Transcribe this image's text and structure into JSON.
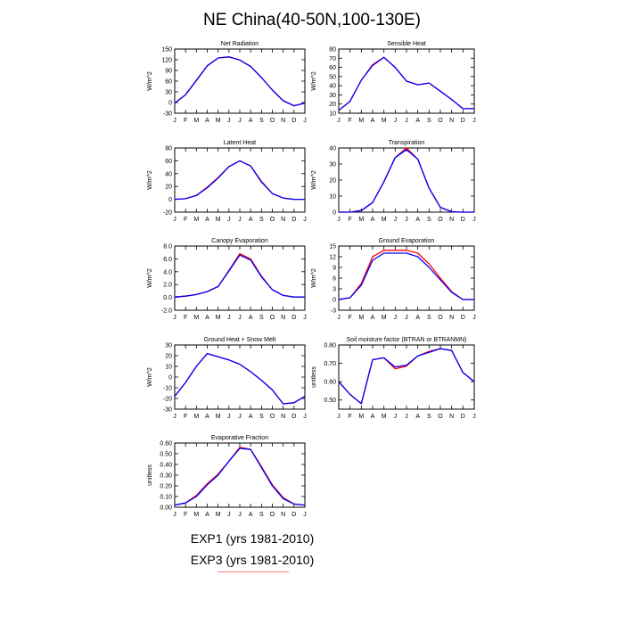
{
  "title": "NE China(40-50N,100-130E)",
  "colors": {
    "exp1": "#0000ff",
    "exp3": "#ff0000"
  },
  "legend": {
    "exp1": "EXP1 (yrs 1981-2010)",
    "exp3": "EXP3 (yrs 1981-2010)"
  },
  "chart_data": [
    {
      "type": "line",
      "title": "Net Radiation",
      "ylabel": "W/m^2",
      "categories": [
        "J",
        "F",
        "M",
        "A",
        "M",
        "J",
        "J",
        "A",
        "S",
        "O",
        "N",
        "D",
        "J"
      ],
      "ylim": [
        -30,
        150
      ],
      "yticks": [
        -30,
        0,
        30,
        60,
        90,
        120,
        150
      ],
      "yticklabels": [
        "-30",
        "0",
        "30",
        "60",
        "90",
        "120",
        "150"
      ],
      "series": [
        {
          "name": "EXP1 (yrs 1981-2010)",
          "color": "#0000ff",
          "values": [
            -2,
            22,
            62,
            103,
            125,
            128,
            119,
            101,
            70,
            35,
            5,
            -9,
            -2
          ]
        },
        {
          "name": "EXP3 (yrs 1981-2010)",
          "color": "#ff0000",
          "values": [
            -2,
            22,
            62,
            103,
            125,
            128,
            119,
            101,
            70,
            35,
            5,
            -9,
            -2
          ]
        }
      ]
    },
    {
      "type": "line",
      "title": "Sensible Heat",
      "ylabel": "W/m^2",
      "categories": [
        "J",
        "F",
        "M",
        "A",
        "M",
        "J",
        "J",
        "A",
        "S",
        "O",
        "N",
        "D",
        "J"
      ],
      "ylim": [
        10,
        80
      ],
      "yticks": [
        10,
        20,
        30,
        40,
        50,
        60,
        70,
        80
      ],
      "yticklabels": [
        "10",
        "20",
        "30",
        "40",
        "50",
        "60",
        "70",
        "80"
      ],
      "series": [
        {
          "name": "EXP1 (yrs 1981-2010)",
          "color": "#0000ff",
          "values": [
            13,
            23,
            46,
            62,
            71,
            60,
            45,
            41,
            43,
            34,
            25,
            15,
            15
          ]
        },
        {
          "name": "EXP3 (yrs 1981-2010)",
          "color": "#ff0000",
          "values": [
            13,
            23,
            46,
            63,
            71,
            60,
            45,
            41,
            43,
            34,
            25,
            15,
            15
          ]
        }
      ]
    },
    {
      "type": "line",
      "title": "Latent Heat",
      "ylabel": "W/m^2",
      "categories": [
        "J",
        "F",
        "M",
        "A",
        "M",
        "J",
        "J",
        "A",
        "S",
        "O",
        "N",
        "D",
        "J"
      ],
      "ylim": [
        -20,
        80
      ],
      "yticks": [
        -20,
        0,
        20,
        40,
        60,
        80
      ],
      "yticklabels": [
        "-20",
        "0",
        "20",
        "40",
        "60",
        "80"
      ],
      "series": [
        {
          "name": "EXP1 (yrs 1981-2010)",
          "color": "#0000ff",
          "values": [
            0,
            1,
            6,
            18,
            33,
            51,
            60,
            52,
            27,
            9,
            2,
            0,
            0
          ]
        },
        {
          "name": "EXP3 (yrs 1981-2010)",
          "color": "#ff0000",
          "values": [
            0,
            1,
            6,
            19,
            34,
            51,
            60,
            52,
            28,
            9,
            2,
            0,
            0
          ]
        }
      ]
    },
    {
      "type": "line",
      "title": "Transpiration",
      "ylabel": "W/m^2",
      "categories": [
        "J",
        "F",
        "M",
        "A",
        "M",
        "J",
        "J",
        "A",
        "S",
        "O",
        "N",
        "D",
        "J"
      ],
      "ylim": [
        0,
        40
      ],
      "yticks": [
        0,
        10,
        20,
        30,
        40
      ],
      "yticklabels": [
        "0",
        "10",
        "20",
        "30",
        "40"
      ],
      "series": [
        {
          "name": "EXP1 (yrs 1981-2010)",
          "color": "#0000ff",
          "values": [
            0,
            0,
            1,
            6,
            19,
            34,
            39,
            33,
            15,
            3,
            0.3,
            0,
            0
          ]
        },
        {
          "name": "EXP3 (yrs 1981-2010)",
          "color": "#ff0000",
          "values": [
            0,
            0,
            1,
            6,
            19,
            34,
            40,
            33,
            15,
            3,
            0.3,
            0,
            0
          ]
        }
      ]
    },
    {
      "type": "line",
      "title": "Canopy Evaporation",
      "ylabel": "W/m^2",
      "categories": [
        "J",
        "F",
        "M",
        "A",
        "M",
        "J",
        "J",
        "A",
        "S",
        "O",
        "N",
        "D",
        "J"
      ],
      "ylim": [
        -2,
        8
      ],
      "yticks": [
        -2,
        0,
        2,
        4,
        6,
        8
      ],
      "yticklabels": [
        "-2.0",
        "0.0",
        "2.0",
        "4.0",
        "6.0",
        "8.0"
      ],
      "series": [
        {
          "name": "EXP1 (yrs 1981-2010)",
          "color": "#0000ff",
          "values": [
            0.05,
            0.2,
            0.45,
            0.9,
            1.7,
            4.1,
            6.6,
            5.8,
            3.2,
            1.2,
            0.3,
            0.05,
            0.05
          ]
        },
        {
          "name": "EXP3 (yrs 1981-2010)",
          "color": "#ff0000",
          "values": [
            0.05,
            0.2,
            0.45,
            0.9,
            1.7,
            4.2,
            6.8,
            6.0,
            3.3,
            1.2,
            0.3,
            0.05,
            0.05
          ]
        }
      ]
    },
    {
      "type": "line",
      "title": "Ground Evaporation",
      "ylabel": "W/m^2",
      "categories": [
        "J",
        "F",
        "M",
        "A",
        "M",
        "J",
        "J",
        "A",
        "S",
        "O",
        "N",
        "D",
        "J"
      ],
      "ylim": [
        -3,
        15
      ],
      "yticks": [
        -3,
        0,
        3,
        6,
        9,
        12,
        15
      ],
      "yticklabels": [
        "-3",
        "0",
        "3",
        "6",
        "9",
        "12",
        "15"
      ],
      "series": [
        {
          "name": "EXP1 (yrs 1981-2010)",
          "color": "#0000ff",
          "values": [
            0,
            0.5,
            4,
            11,
            13,
            13,
            13,
            12,
            9,
            5.5,
            2,
            0,
            0
          ]
        },
        {
          "name": "EXP3 (yrs 1981-2010)",
          "color": "#ff0000",
          "values": [
            0,
            0.5,
            4.5,
            12,
            13.8,
            13.8,
            13.8,
            13,
            10,
            6,
            2.2,
            0,
            0
          ]
        }
      ]
    },
    {
      "type": "line",
      "title": "Ground Heat + Snow Melt",
      "ylabel": "W/m^2",
      "categories": [
        "J",
        "F",
        "M",
        "A",
        "M",
        "J",
        "J",
        "A",
        "S",
        "O",
        "N",
        "D",
        "J"
      ],
      "ylim": [
        -30,
        30
      ],
      "yticks": [
        -30,
        -20,
        -10,
        0,
        10,
        20,
        30
      ],
      "yticklabels": [
        "-30",
        "-20",
        "-10",
        "0",
        "10",
        "20",
        "30"
      ],
      "series": [
        {
          "name": "EXP1 (yrs 1981-2010)",
          "color": "#0000ff",
          "values": [
            -18,
            -5,
            10,
            22,
            19,
            16,
            12,
            5,
            -3,
            -12,
            -25,
            -24,
            -18
          ]
        },
        {
          "name": "EXP3 (yrs 1981-2010)",
          "color": "#ff0000",
          "values": [
            -18,
            -5,
            10,
            22,
            19,
            16,
            12,
            5,
            -3,
            -12,
            -25,
            -24,
            -18
          ]
        }
      ]
    },
    {
      "type": "line",
      "title": "Soil moisture factor (BTRAN or BTRANMN)",
      "ylabel": "unitless",
      "categories": [
        "J",
        "F",
        "M",
        "A",
        "M",
        "J",
        "J",
        "A",
        "S",
        "O",
        "N",
        "D",
        "J"
      ],
      "ylim": [
        0.45,
        0.8
      ],
      "yticks": [
        0.5,
        0.6,
        0.7,
        0.8
      ],
      "yticklabels": [
        "0.50",
        "0.60",
        "0.70",
        "0.80"
      ],
      "series": [
        {
          "name": "EXP1 (yrs 1981-2010)",
          "color": "#0000ff",
          "values": [
            0.6,
            0.53,
            0.48,
            0.72,
            0.73,
            0.68,
            0.69,
            0.74,
            0.76,
            0.78,
            0.77,
            0.65,
            0.6
          ]
        },
        {
          "name": "EXP3 (yrs 1981-2010)",
          "color": "#ff0000",
          "values": [
            0.6,
            0.53,
            0.48,
            0.72,
            0.73,
            0.67,
            0.685,
            0.74,
            0.765,
            0.78,
            0.77,
            0.65,
            0.6
          ]
        }
      ]
    },
    {
      "type": "line",
      "title": "Evaporative Fraction",
      "ylabel": "unitless",
      "categories": [
        "J",
        "F",
        "M",
        "A",
        "M",
        "J",
        "J",
        "A",
        "S",
        "O",
        "N",
        "D",
        "J"
      ],
      "ylim": [
        0,
        0.6
      ],
      "yticks": [
        0,
        0.1,
        0.2,
        0.3,
        0.4,
        0.5,
        0.6
      ],
      "yticklabels": [
        "0.00",
        "0.10",
        "0.20",
        "0.30",
        "0.40",
        "0.50",
        "0.60"
      ],
      "series": [
        {
          "name": "EXP1 (yrs 1981-2010)",
          "color": "#0000ff",
          "values": [
            0.02,
            0.04,
            0.1,
            0.21,
            0.3,
            0.43,
            0.55,
            0.54,
            0.37,
            0.2,
            0.08,
            0.03,
            0.02
          ]
        },
        {
          "name": "EXP3 (yrs 1981-2010)",
          "color": "#ff0000",
          "values": [
            0.02,
            0.04,
            0.11,
            0.22,
            0.31,
            0.43,
            0.56,
            0.54,
            0.38,
            0.21,
            0.09,
            0.03,
            0.02
          ]
        }
      ]
    }
  ]
}
